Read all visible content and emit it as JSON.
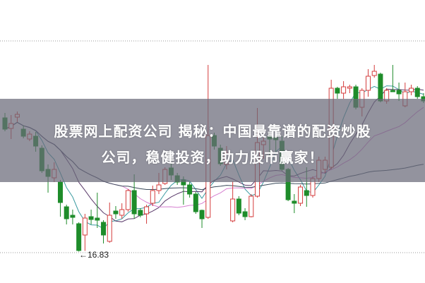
{
  "title_line1": "股票网上配资公司 揭秘：中国最靠谱的配资炒股",
  "title_line2": "公司，稳健投资，助力股市赢家！",
  "colors": {
    "up": "#d43c3c",
    "down": "#1e8c2a",
    "ma1": "#3a9aa0",
    "ma2": "#5a3a6a",
    "ma3": "#d67fd0",
    "ma4": "#3a4a5a",
    "grid": "#999999"
  },
  "chart_data": {
    "type": "candlestick",
    "grid": "dotted horizontal",
    "annotations": [
      {
        "text": "←16.83",
        "marks": "lowest low"
      }
    ],
    "candles": [
      [
        20.62,
        20.76,
        20.24,
        20.3
      ],
      [
        20.32,
        20.7,
        20.02,
        20.46
      ],
      [
        20.64,
        20.8,
        20.5,
        20.72
      ],
      [
        20.3,
        20.4,
        20.04,
        20.1
      ],
      [
        20.02,
        20.24,
        19.96,
        20.16
      ],
      [
        20.1,
        20.22,
        19.66,
        19.82
      ],
      [
        19.76,
        19.84,
        19.06,
        19.12
      ],
      [
        19.16,
        19.3,
        18.5,
        18.96
      ],
      [
        18.92,
        19.36,
        18.8,
        19.16
      ],
      [
        18.8,
        18.86,
        17.82,
        18.22
      ],
      [
        18.1,
        18.16,
        17.6,
        17.76
      ],
      [
        17.86,
        18.02,
        17.6,
        17.8
      ],
      [
        17.62,
        17.66,
        16.83,
        16.86
      ],
      [
        17.3,
        17.9,
        16.85,
        17.78
      ],
      [
        17.82,
        18.02,
        17.6,
        17.74
      ],
      [
        17.78,
        18.5,
        17.5,
        17.72
      ],
      [
        17.66,
        17.72,
        17.06,
        17.3
      ],
      [
        17.12,
        18.22,
        17.08,
        17.86
      ],
      [
        17.98,
        18.12,
        17.76,
        17.9
      ],
      [
        17.86,
        18.2,
        17.76,
        18.02
      ],
      [
        18.02,
        18.6,
        17.96,
        18.56
      ],
      [
        18.56,
        19.02,
        17.76,
        17.9
      ],
      [
        18.0,
        18.06,
        17.8,
        17.86
      ],
      [
        17.9,
        18.16,
        17.62,
        18.1
      ],
      [
        18.2,
        18.7,
        18.12,
        18.56
      ],
      [
        18.56,
        19.06,
        18.46,
        18.72
      ],
      [
        18.76,
        19.22,
        18.72,
        19.16
      ],
      [
        19.2,
        19.32,
        18.86,
        19.0
      ],
      [
        18.98,
        19.06,
        18.72,
        18.8
      ],
      [
        18.86,
        18.96,
        18.16,
        18.72
      ],
      [
        18.72,
        18.8,
        18.36,
        18.46
      ],
      [
        18.46,
        18.52,
        17.9,
        17.96
      ],
      [
        18.0,
        18.02,
        17.5,
        17.76
      ],
      [
        17.8,
        22.12,
        17.76,
        20.12
      ],
      [
        20.12,
        20.2,
        19.72,
        19.82
      ],
      [
        19.76,
        19.86,
        19.26,
        19.32
      ],
      [
        19.3,
        19.82,
        19.16,
        19.62
      ],
      [
        17.7,
        18.82,
        17.66,
        18.32
      ],
      [
        18.32,
        18.4,
        17.86,
        17.92
      ],
      [
        17.96,
        18.06,
        17.72,
        17.82
      ],
      [
        17.82,
        18.46,
        17.8,
        18.4
      ],
      [
        18.4,
        20.9,
        18.36,
        19.92
      ],
      [
        19.86,
        20.06,
        19.46,
        19.96
      ],
      [
        20.1,
        20.2,
        19.56,
        20.02
      ],
      [
        20.06,
        20.16,
        19.66,
        20.0
      ],
      [
        19.96,
        20.1,
        19.12,
        19.16
      ],
      [
        19.16,
        19.2,
        18.26,
        18.3
      ],
      [
        18.26,
        18.46,
        17.92,
        18.2
      ],
      [
        18.2,
        18.72,
        18.12,
        18.66
      ],
      [
        18.56,
        19.22,
        18.1,
        18.42
      ],
      [
        18.42,
        18.96,
        18.36,
        18.9
      ],
      [
        18.9,
        19.52,
        18.8,
        19.42
      ],
      [
        19.16,
        19.52,
        19.06,
        19.42
      ],
      [
        19.22,
        21.7,
        19.16,
        21.46
      ],
      [
        21.46,
        21.5,
        21.16,
        21.32
      ],
      [
        21.32,
        21.66,
        21.16,
        21.5
      ],
      [
        21.46,
        21.56,
        21.32,
        21.5
      ],
      [
        21.5,
        21.56,
        20.86,
        20.92
      ],
      [
        20.92,
        21.46,
        20.66,
        21.4
      ],
      [
        21.4,
        22.0,
        21.22,
        21.8
      ],
      [
        21.82,
        22.12,
        21.76,
        21.94
      ],
      [
        21.86,
        21.9,
        21.06,
        21.1
      ],
      [
        21.1,
        21.46,
        21.02,
        21.4
      ],
      [
        21.4,
        22.12,
        21.36,
        21.36
      ],
      [
        21.4,
        21.62,
        21.1,
        21.3
      ],
      [
        20.96,
        21.62,
        20.92,
        21.36
      ],
      [
        21.36,
        21.56,
        21.26,
        21.46
      ],
      [
        21.46,
        21.52,
        21.16,
        21.22
      ],
      [
        21.22,
        21.32,
        21.04,
        21.1
      ]
    ]
  }
}
